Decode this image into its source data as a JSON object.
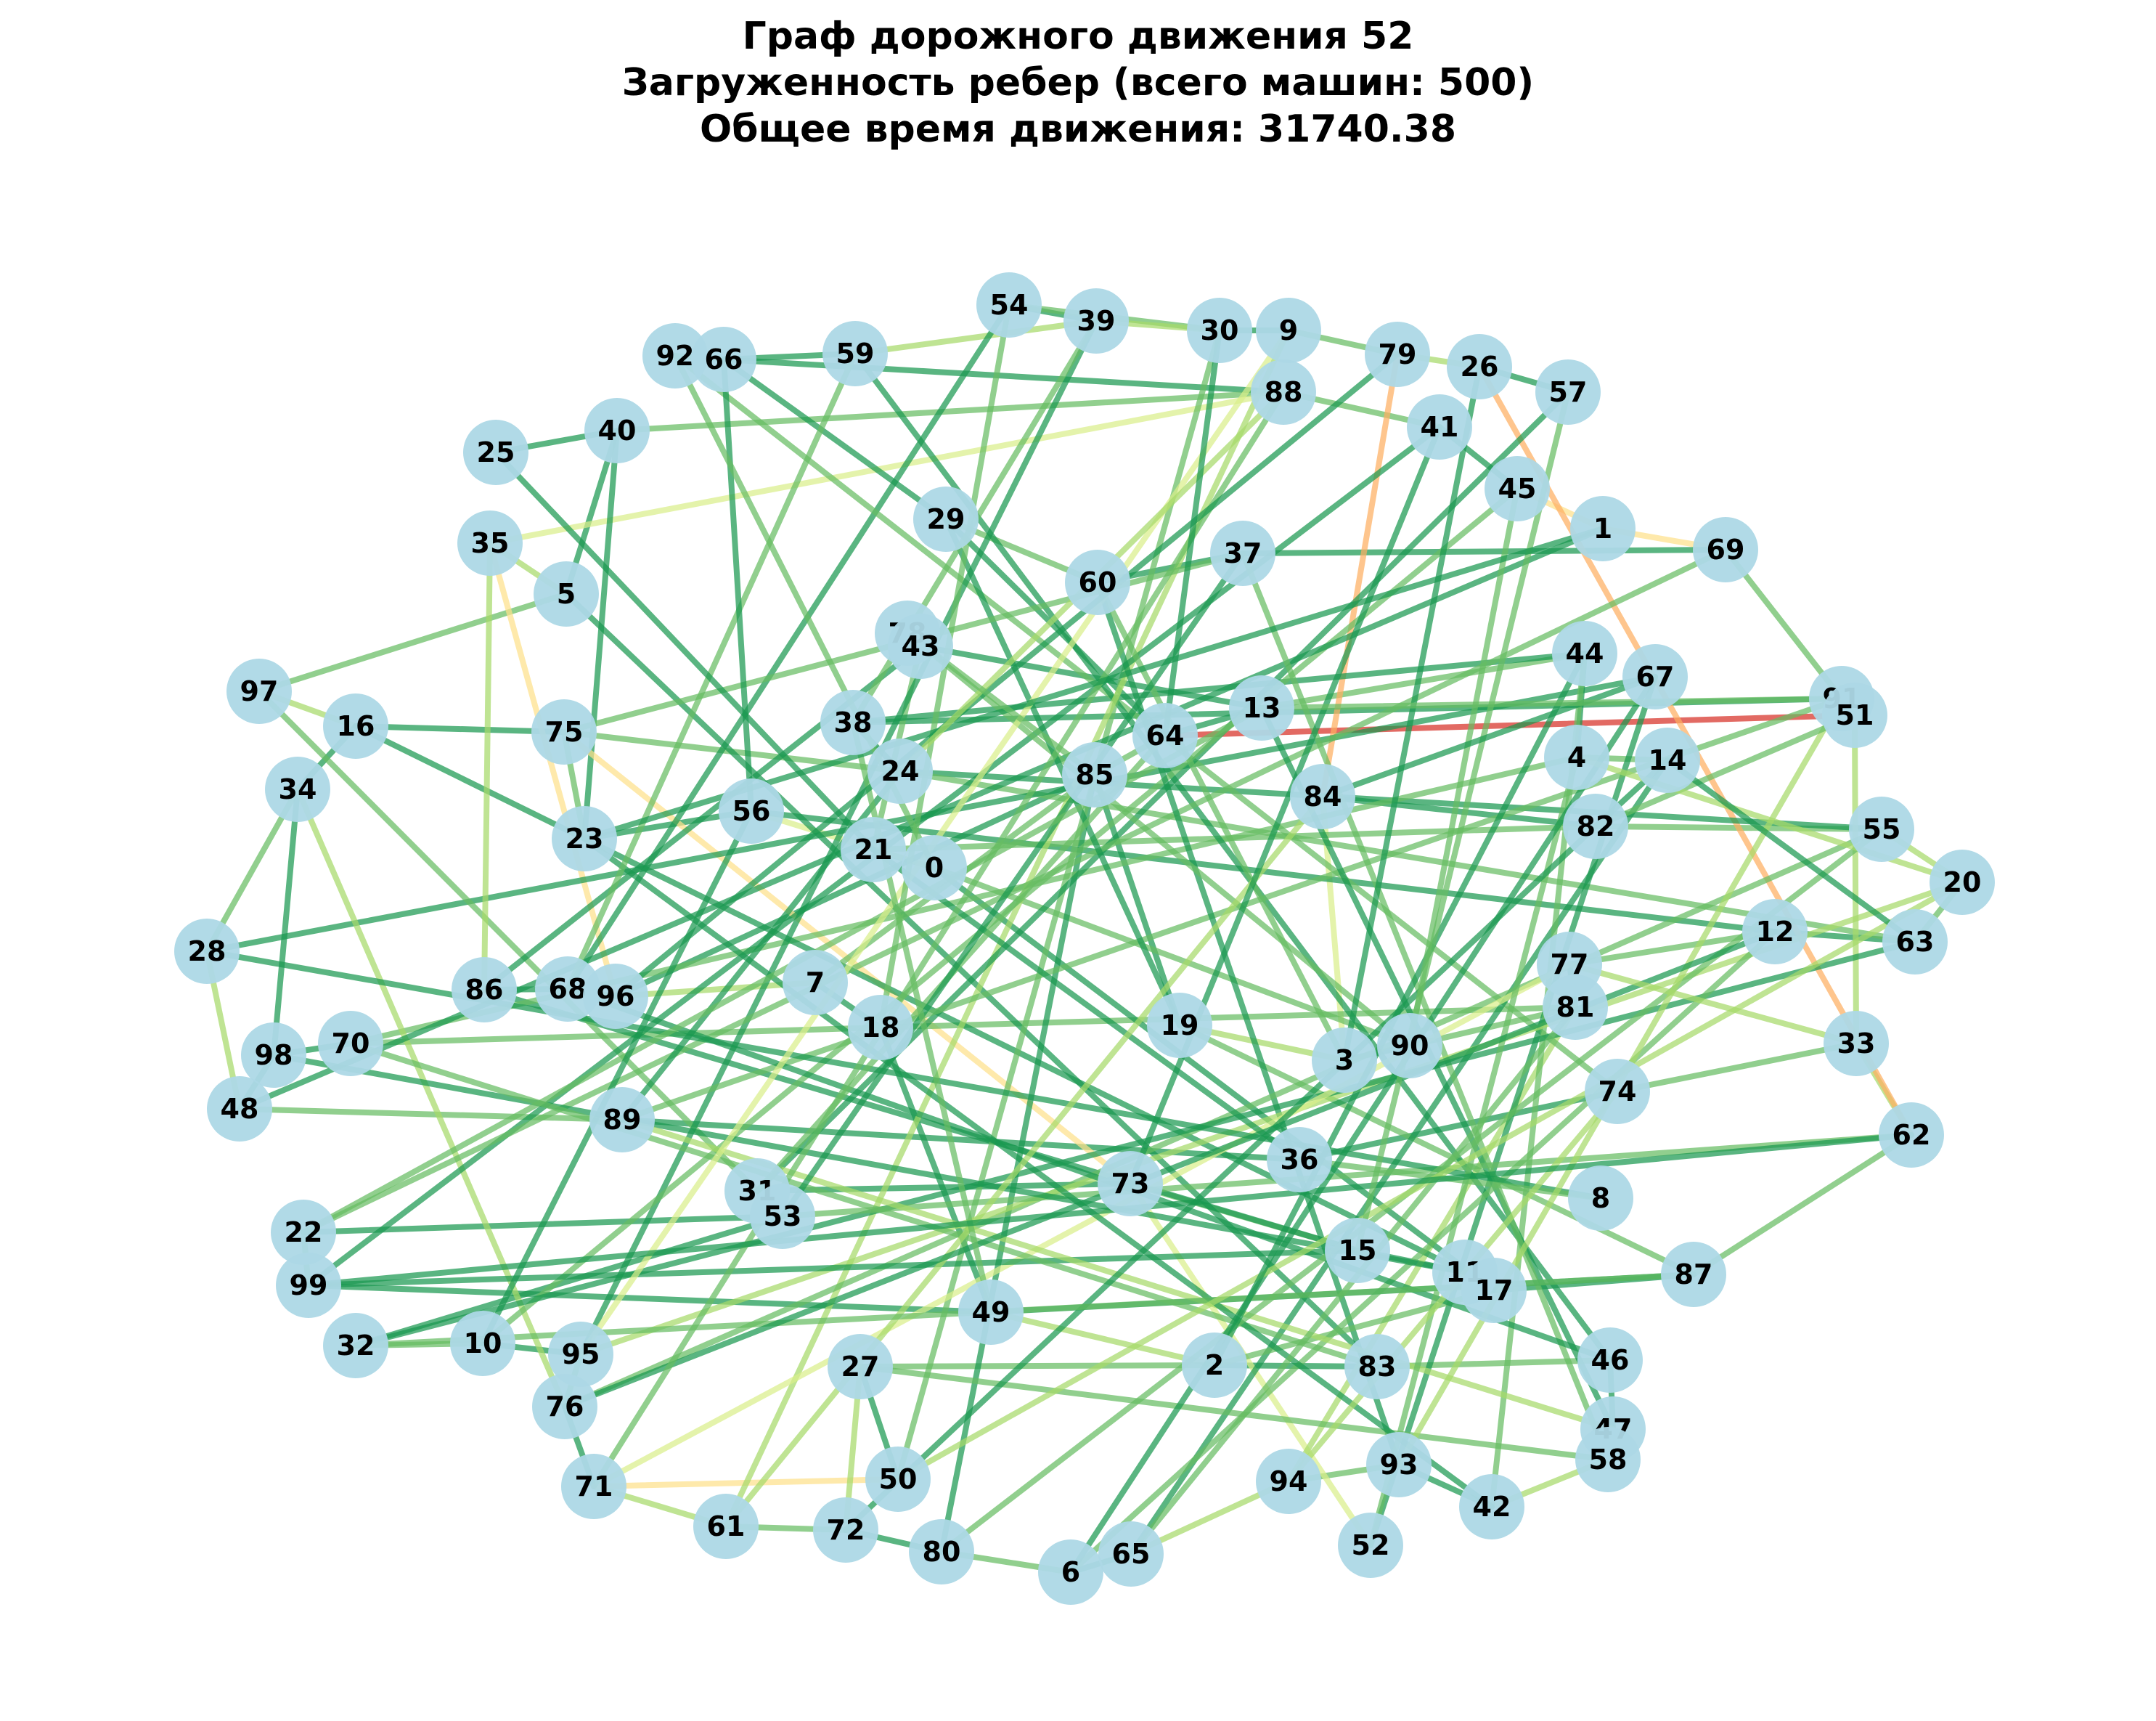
{
  "title": {
    "line1": "Граф дорожного движения 52",
    "line2": "Загруженность ребер (всего машин: 500)",
    "line3": "Общее время движения: 31740.38"
  },
  "colors": {
    "node_fill": "#add8e6",
    "edge_low": "#1a9850",
    "edge_midlow": "#66bd63",
    "edge_mid": "#a6d96a",
    "edge_midhigh": "#d9ef8b",
    "edge_light": "#fee08b",
    "edge_orange": "#fdae61",
    "edge_high": "#d73027"
  },
  "nodes": [
    {
      "id": "54"
    },
    {
      "id": "39"
    },
    {
      "id": "30"
    },
    {
      "id": "9"
    },
    {
      "id": "79"
    },
    {
      "id": "26"
    },
    {
      "id": "57"
    },
    {
      "id": "92"
    },
    {
      "id": "66"
    },
    {
      "id": "59"
    },
    {
      "id": "88"
    },
    {
      "id": "41"
    },
    {
      "id": "25"
    },
    {
      "id": "40"
    },
    {
      "id": "45"
    },
    {
      "id": "1"
    },
    {
      "id": "69"
    },
    {
      "id": "29"
    },
    {
      "id": "35"
    },
    {
      "id": "37"
    },
    {
      "id": "5"
    },
    {
      "id": "60"
    },
    {
      "id": "78"
    },
    {
      "id": "43"
    },
    {
      "id": "44"
    },
    {
      "id": "67"
    },
    {
      "id": "97"
    },
    {
      "id": "16"
    },
    {
      "id": "91"
    },
    {
      "id": "51"
    },
    {
      "id": "13"
    },
    {
      "id": "38"
    },
    {
      "id": "75"
    },
    {
      "id": "64"
    },
    {
      "id": "4"
    },
    {
      "id": "14"
    },
    {
      "id": "24"
    },
    {
      "id": "34"
    },
    {
      "id": "85"
    },
    {
      "id": "84"
    },
    {
      "id": "56"
    },
    {
      "id": "82"
    },
    {
      "id": "55"
    },
    {
      "id": "23"
    },
    {
      "id": "21"
    },
    {
      "id": "0"
    },
    {
      "id": "20"
    },
    {
      "id": "12"
    },
    {
      "id": "63"
    },
    {
      "id": "28"
    },
    {
      "id": "77"
    },
    {
      "id": "7"
    },
    {
      "id": "86"
    },
    {
      "id": "68"
    },
    {
      "id": "96"
    },
    {
      "id": "81"
    },
    {
      "id": "18"
    },
    {
      "id": "19"
    },
    {
      "id": "98"
    },
    {
      "id": "70"
    },
    {
      "id": "90"
    },
    {
      "id": "3"
    },
    {
      "id": "33"
    },
    {
      "id": "74"
    },
    {
      "id": "48"
    },
    {
      "id": "89"
    },
    {
      "id": "62"
    },
    {
      "id": "36"
    },
    {
      "id": "31"
    },
    {
      "id": "73"
    },
    {
      "id": "8"
    },
    {
      "id": "53"
    },
    {
      "id": "22"
    },
    {
      "id": "15"
    },
    {
      "id": "99"
    },
    {
      "id": "11"
    },
    {
      "id": "17"
    },
    {
      "id": "87"
    },
    {
      "id": "49"
    },
    {
      "id": "32"
    },
    {
      "id": "10"
    },
    {
      "id": "95"
    },
    {
      "id": "27"
    },
    {
      "id": "2"
    },
    {
      "id": "83"
    },
    {
      "id": "46"
    },
    {
      "id": "76"
    },
    {
      "id": "47"
    },
    {
      "id": "58"
    },
    {
      "id": "93"
    },
    {
      "id": "71"
    },
    {
      "id": "50"
    },
    {
      "id": "94"
    },
    {
      "id": "42"
    },
    {
      "id": "61"
    },
    {
      "id": "72"
    },
    {
      "id": "52"
    },
    {
      "id": "80"
    },
    {
      "id": "65"
    },
    {
      "id": "6"
    }
  ],
  "edges": [
    [
      "54",
      "39",
      "edge_low"
    ],
    [
      "54",
      "30",
      "edge_midlow"
    ],
    [
      "39",
      "30",
      "edge_mid"
    ],
    [
      "30",
      "9",
      "edge_low"
    ],
    [
      "9",
      "79",
      "edge_midlow"
    ],
    [
      "79",
      "26",
      "edge_mid"
    ],
    [
      "26",
      "57",
      "edge_low"
    ],
    [
      "92",
      "66",
      "edge_midlow"
    ],
    [
      "66",
      "59",
      "edge_low"
    ],
    [
      "59",
      "39",
      "edge_mid"
    ],
    [
      "66",
      "88",
      "edge_low"
    ],
    [
      "88",
      "41",
      "edge_midlow"
    ],
    [
      "41",
      "45",
      "edge_low"
    ],
    [
      "45",
      "1",
      "edge_light"
    ],
    [
      "1",
      "69",
      "edge_light"
    ],
    [
      "69",
      "91",
      "edge_midlow"
    ],
    [
      "25",
      "40",
      "edge_low"
    ],
    [
      "40",
      "88",
      "edge_midlow"
    ],
    [
      "40",
      "5",
      "edge_low"
    ],
    [
      "35",
      "5",
      "edge_mid"
    ],
    [
      "35",
      "88",
      "edge_midhigh"
    ],
    [
      "5",
      "97",
      "edge_midlow"
    ],
    [
      "97",
      "16",
      "edge_mid"
    ],
    [
      "16",
      "34",
      "edge_low"
    ],
    [
      "34",
      "28",
      "edge_midlow"
    ],
    [
      "28",
      "48",
      "edge_mid"
    ],
    [
      "48",
      "98",
      "edge_low"
    ],
    [
      "98",
      "34",
      "edge_low"
    ],
    [
      "16",
      "75",
      "edge_low"
    ],
    [
      "75",
      "24",
      "edge_midlow"
    ],
    [
      "24",
      "38",
      "edge_low"
    ],
    [
      "38",
      "91",
      "edge_low"
    ],
    [
      "91",
      "51",
      "edge_high"
    ],
    [
      "51",
      "64",
      "edge_high"
    ],
    [
      "64",
      "13",
      "edge_low"
    ],
    [
      "13",
      "44",
      "edge_midlow"
    ],
    [
      "44",
      "4",
      "edge_low"
    ],
    [
      "4",
      "14",
      "edge_midlow"
    ],
    [
      "14",
      "82",
      "edge_low"
    ],
    [
      "82",
      "55",
      "edge_midlow"
    ],
    [
      "55",
      "20",
      "edge_mid"
    ],
    [
      "20",
      "63",
      "edge_midlow"
    ],
    [
      "63",
      "12",
      "edge_low"
    ],
    [
      "12",
      "77",
      "edge_midlow"
    ],
    [
      "77",
      "81",
      "edge_low"
    ],
    [
      "81",
      "90",
      "edge_midlow"
    ],
    [
      "90",
      "3",
      "edge_low"
    ],
    [
      "3",
      "19",
      "edge_mid"
    ],
    [
      "19",
      "85",
      "edge_low"
    ],
    [
      "85",
      "64",
      "edge_midlow"
    ],
    [
      "64",
      "29",
      "edge_low"
    ],
    [
      "29",
      "66",
      "edge_low"
    ],
    [
      "29",
      "60",
      "edge_midlow"
    ],
    [
      "60",
      "37",
      "edge_low"
    ],
    [
      "37",
      "69",
      "edge_low"
    ],
    [
      "78",
      "43",
      "edge_mid"
    ],
    [
      "43",
      "13",
      "edge_low"
    ],
    [
      "43",
      "21",
      "edge_midlow"
    ],
    [
      "21",
      "0",
      "edge_low"
    ],
    [
      "0",
      "56",
      "edge_midhigh"
    ],
    [
      "56",
      "23",
      "edge_low"
    ],
    [
      "23",
      "75",
      "edge_midlow"
    ],
    [
      "23",
      "40",
      "edge_low"
    ],
    [
      "86",
      "68",
      "edge_low"
    ],
    [
      "68",
      "96",
      "edge_midlow"
    ],
    [
      "96",
      "85",
      "edge_low"
    ],
    [
      "96",
      "7",
      "edge_mid"
    ],
    [
      "7",
      "18",
      "edge_low"
    ],
    [
      "18",
      "70",
      "edge_midlow"
    ],
    [
      "70",
      "98",
      "edge_low"
    ],
    [
      "48",
      "89",
      "edge_midlow"
    ],
    [
      "89",
      "36",
      "edge_low"
    ],
    [
      "36",
      "74",
      "edge_low"
    ],
    [
      "74",
      "33",
      "edge_midlow"
    ],
    [
      "33",
      "62",
      "edge_mid"
    ],
    [
      "62",
      "87",
      "edge_midlow"
    ],
    [
      "87",
      "17",
      "edge_low"
    ],
    [
      "17",
      "11",
      "edge_midlow"
    ],
    [
      "11",
      "15",
      "edge_low"
    ],
    [
      "15",
      "73",
      "edge_midlow"
    ],
    [
      "73",
      "31",
      "edge_low"
    ],
    [
      "31",
      "53",
      "edge_midlow"
    ],
    [
      "53",
      "22",
      "edge_low"
    ],
    [
      "22",
      "99",
      "edge_midlow"
    ],
    [
      "99",
      "49",
      "edge_low"
    ],
    [
      "49",
      "2",
      "edge_mid"
    ],
    [
      "2",
      "83",
      "edge_low"
    ],
    [
      "83",
      "46",
      "edge_midlow"
    ],
    [
      "46",
      "47",
      "edge_low"
    ],
    [
      "47",
      "58",
      "edge_midlow"
    ],
    [
      "58",
      "42",
      "edge_mid"
    ],
    [
      "42",
      "93",
      "edge_low"
    ],
    [
      "93",
      "94",
      "edge_midlow"
    ],
    [
      "94",
      "65",
      "edge_mid"
    ],
    [
      "65",
      "6",
      "edge_low"
    ],
    [
      "6",
      "80",
      "edge_midlow"
    ],
    [
      "80",
      "72",
      "edge_low"
    ],
    [
      "72",
      "61",
      "edge_midlow"
    ],
    [
      "61",
      "71",
      "edge_mid"
    ],
    [
      "71",
      "76",
      "edge_low"
    ],
    [
      "76",
      "95",
      "edge_midlow"
    ],
    [
      "95",
      "10",
      "edge_low"
    ],
    [
      "10",
      "32",
      "edge_midlow"
    ],
    [
      "32",
      "53",
      "edge_low"
    ],
    [
      "79",
      "84",
      "edge_orange"
    ],
    [
      "26",
      "62",
      "edge_orange"
    ],
    [
      "84",
      "82",
      "edge_low"
    ],
    [
      "84",
      "3",
      "edge_midhigh"
    ],
    [
      "35",
      "96",
      "edge_light"
    ],
    [
      "75",
      "73",
      "edge_light"
    ],
    [
      "73",
      "52",
      "edge_midhigh"
    ],
    [
      "50",
      "71",
      "edge_light"
    ],
    [
      "50",
      "27",
      "edge_low"
    ],
    [
      "27",
      "2",
      "edge_midlow"
    ],
    [
      "27",
      "72",
      "edge_mid"
    ],
    [
      "49",
      "18",
      "edge_low"
    ],
    [
      "18",
      "81",
      "edge_midlow"
    ],
    [
      "81",
      "94",
      "edge_mid"
    ],
    [
      "0",
      "17",
      "edge_low"
    ],
    [
      "0",
      "90",
      "edge_midlow"
    ],
    [
      "24",
      "55",
      "edge_low"
    ],
    [
      "24",
      "63",
      "edge_midlow"
    ],
    [
      "56",
      "12",
      "edge_low"
    ],
    [
      "21",
      "82",
      "edge_midlow"
    ],
    [
      "38",
      "44",
      "edge_low"
    ],
    [
      "85",
      "80",
      "edge_low"
    ],
    [
      "19",
      "87",
      "edge_midlow"
    ],
    [
      "86",
      "15",
      "edge_low"
    ],
    [
      "68",
      "54",
      "edge_low"
    ],
    [
      "70",
      "4",
      "edge_midlow"
    ],
    [
      "28",
      "67",
      "edge_low"
    ],
    [
      "97",
      "31",
      "edge_midlow"
    ],
    [
      "16",
      "11",
      "edge_low"
    ],
    [
      "34",
      "76",
      "edge_mid"
    ],
    [
      "5",
      "83",
      "edge_low"
    ],
    [
      "92",
      "74",
      "edge_midlow"
    ],
    [
      "59",
      "46",
      "edge_low"
    ],
    [
      "39",
      "95",
      "edge_low"
    ],
    [
      "30",
      "50",
      "edge_midlow"
    ],
    [
      "9",
      "61",
      "edge_mid"
    ],
    [
      "57",
      "31",
      "edge_low"
    ],
    [
      "41",
      "99",
      "edge_low"
    ],
    [
      "45",
      "10",
      "edge_midlow"
    ],
    [
      "1",
      "48",
      "edge_low"
    ],
    [
      "69",
      "22",
      "edge_midlow"
    ],
    [
      "67",
      "52",
      "edge_low"
    ],
    [
      "91",
      "89",
      "edge_midlow"
    ],
    [
      "51",
      "33",
      "edge_mid"
    ],
    [
      "14",
      "65",
      "edge_low"
    ],
    [
      "44",
      "42",
      "edge_midlow"
    ],
    [
      "13",
      "47",
      "edge_low"
    ],
    [
      "37",
      "58",
      "edge_midlow"
    ],
    [
      "60",
      "93",
      "edge_low"
    ],
    [
      "78",
      "90",
      "edge_midlow"
    ],
    [
      "43",
      "86",
      "edge_low"
    ],
    [
      "55",
      "76",
      "edge_midlow"
    ],
    [
      "20",
      "95",
      "edge_mid"
    ],
    [
      "63",
      "32",
      "edge_low"
    ],
    [
      "12",
      "6",
      "edge_midlow"
    ],
    [
      "77",
      "71",
      "edge_midhigh"
    ],
    [
      "62",
      "53",
      "edge_midlow"
    ],
    [
      "87",
      "49",
      "edge_low"
    ],
    [
      "8",
      "28",
      "edge_low"
    ],
    [
      "8",
      "36",
      "edge_midlow"
    ],
    [
      "11",
      "98",
      "edge_low"
    ],
    [
      "17",
      "2",
      "edge_midlow"
    ],
    [
      "15",
      "99",
      "edge_low"
    ],
    [
      "83",
      "70",
      "edge_midlow"
    ],
    [
      "46",
      "68",
      "edge_low"
    ],
    [
      "47",
      "89",
      "edge_mid"
    ],
    [
      "58",
      "27",
      "edge_midlow"
    ],
    [
      "42",
      "23",
      "edge_low"
    ],
    [
      "52",
      "4",
      "edge_midlow"
    ],
    [
      "94",
      "74",
      "edge_mid"
    ],
    [
      "36",
      "21",
      "edge_low"
    ],
    [
      "3",
      "60",
      "edge_midlow"
    ],
    [
      "19",
      "29",
      "edge_low"
    ],
    [
      "7",
      "85",
      "edge_midlow"
    ],
    [
      "89",
      "24",
      "edge_low"
    ],
    [
      "31",
      "64",
      "edge_midlow"
    ],
    [
      "53",
      "37",
      "edge_low"
    ],
    [
      "22",
      "13",
      "edge_midlow"
    ],
    [
      "61",
      "84",
      "edge_mid"
    ],
    [
      "72",
      "82",
      "edge_low"
    ],
    [
      "80",
      "55",
      "edge_midlow"
    ],
    [
      "6",
      "67",
      "edge_low"
    ],
    [
      "65",
      "81",
      "edge_midlow"
    ],
    [
      "93",
      "91",
      "edge_mid"
    ],
    [
      "10",
      "56",
      "edge_low"
    ],
    [
      "32",
      "87",
      "edge_midlow"
    ],
    [
      "76",
      "12",
      "edge_low"
    ],
    [
      "95",
      "9",
      "edge_midhigh"
    ],
    [
      "71",
      "88",
      "edge_midlow"
    ],
    [
      "50",
      "20",
      "edge_mid"
    ],
    [
      "2",
      "44",
      "edge_low"
    ],
    [
      "49",
      "38",
      "edge_midlow"
    ],
    [
      "99",
      "62",
      "edge_low"
    ],
    [
      "15",
      "57",
      "edge_midlow"
    ],
    [
      "73",
      "41",
      "edge_low"
    ],
    [
      "33",
      "77",
      "edge_mid"
    ],
    [
      "90",
      "45",
      "edge_midlow"
    ],
    [
      "3",
      "26",
      "edge_low"
    ],
    [
      "18",
      "54",
      "edge_midlow"
    ],
    [
      "96",
      "79",
      "edge_low"
    ],
    [
      "68",
      "59",
      "edge_midlow"
    ],
    [
      "86",
      "35",
      "edge_mid"
    ],
    [
      "23",
      "1",
      "edge_low"
    ],
    [
      "75",
      "37",
      "edge_midlow"
    ],
    [
      "56",
      "66",
      "edge_low"
    ],
    [
      "0",
      "92",
      "edge_midlow"
    ],
    [
      "21",
      "25",
      "edge_low"
    ],
    [
      "24",
      "88",
      "edge_mid"
    ],
    [
      "38",
      "39",
      "edge_midlow"
    ],
    [
      "64",
      "30",
      "edge_low"
    ],
    [
      "85",
      "78",
      "edge_midlow"
    ],
    [
      "84",
      "67",
      "edge_low"
    ],
    [
      "82",
      "51",
      "edge_midlow"
    ],
    [
      "4",
      "20",
      "edge_mid"
    ],
    [
      "14",
      "63",
      "edge_low"
    ],
    [
      "13",
      "91",
      "edge_midlow"
    ]
  ]
}
